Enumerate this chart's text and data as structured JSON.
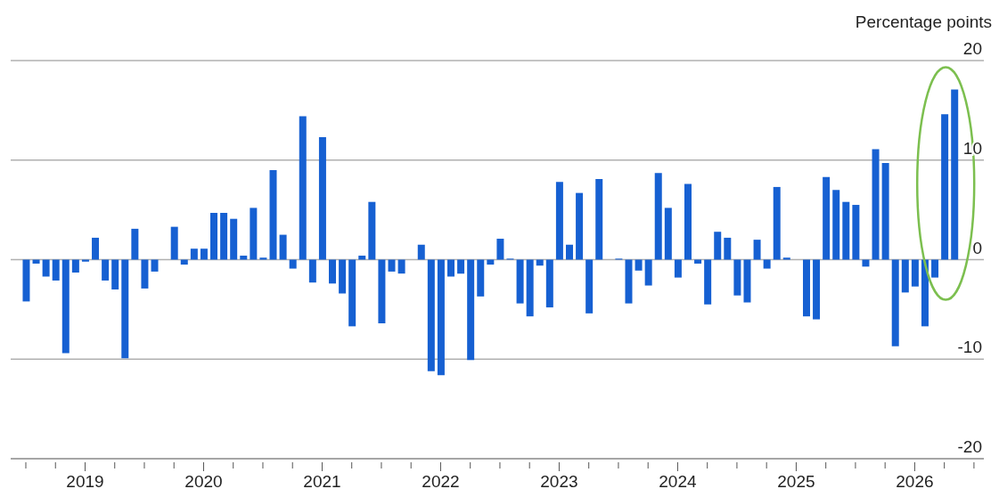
{
  "chart_data": {
    "type": "bar",
    "ylabel": "Percentage points",
    "x": [
      "2018-07",
      "2018-08",
      "2018-09",
      "2018-10",
      "2018-11",
      "2018-12",
      "2019-01",
      "2019-02",
      "2019-03",
      "2019-04",
      "2019-05",
      "2019-06",
      "2019-07",
      "2019-08",
      "2019-09",
      "2019-10",
      "2019-11",
      "2019-12",
      "2020-01",
      "2020-02",
      "2020-03",
      "2020-04",
      "2020-05",
      "2020-06",
      "2020-07",
      "2020-08",
      "2020-09",
      "2020-10",
      "2020-11",
      "2020-12",
      "2021-01",
      "2021-02",
      "2021-03",
      "2021-04",
      "2021-05",
      "2021-06",
      "2021-07",
      "2021-08",
      "2021-09",
      "2021-10",
      "2021-11",
      "2021-12",
      "2022-01",
      "2022-02",
      "2022-03",
      "2022-04",
      "2022-05",
      "2022-06",
      "2022-07",
      "2022-08",
      "2022-09",
      "2022-10",
      "2022-11",
      "2022-12",
      "2023-01",
      "2023-02",
      "2023-03",
      "2023-04",
      "2023-05",
      "2023-06",
      "2023-07",
      "2023-08",
      "2023-09",
      "2023-10",
      "2023-11",
      "2023-12",
      "2024-01",
      "2024-02",
      "2024-03",
      "2024-04",
      "2024-05",
      "2024-06",
      "2024-07",
      "2024-08",
      "2024-09",
      "2024-10",
      "2024-11",
      "2024-12",
      "2025-01",
      "2025-02",
      "2025-03",
      "2025-04",
      "2025-05",
      "2025-06",
      "2025-07",
      "2025-08",
      "2025-09",
      "2025-10",
      "2025-11",
      "2025-12",
      "2026-01",
      "2026-02",
      "2026-03",
      "2026-04",
      "2026-05"
    ],
    "values": [
      -4.2,
      -0.4,
      -1.7,
      -2.1,
      -9.4,
      -1.3,
      -0.2,
      2.2,
      -2.1,
      -3.0,
      -9.9,
      3.1,
      -2.9,
      -1.2,
      0,
      3.3,
      -0.5,
      1.1,
      1.1,
      4.7,
      4.7,
      4.1,
      0.4,
      5.2,
      0.2,
      9.0,
      2.5,
      -0.9,
      14.4,
      -2.3,
      12.3,
      -2.4,
      -3.4,
      -6.7,
      0.4,
      5.8,
      -6.4,
      -1.2,
      -1.4,
      0,
      1.5,
      -11.2,
      -11.6,
      -1.7,
      -1.4,
      -10.1,
      -3.7,
      -0.5,
      2.1,
      0.1,
      -4.4,
      -5.7,
      -0.6,
      -4.8,
      7.8,
      1.5,
      6.7,
      -5.4,
      8.1,
      0,
      0.1,
      -4.4,
      -1.1,
      -2.6,
      8.7,
      5.2,
      -1.8,
      7.6,
      -0.4,
      -4.5,
      2.8,
      2.2,
      -3.6,
      -4.3,
      2.0,
      -0.9,
      7.3,
      0.2,
      0,
      -5.7,
      -6.0,
      8.3,
      7.0,
      5.8,
      5.5,
      -0.7,
      11.1,
      9.7,
      -8.7,
      -3.3,
      -2.7,
      -6.7,
      -1.8,
      14.6,
      17.1
    ],
    "color": "#1660d2",
    "xlim": [
      "2018-05-15",
      "2026-08-01"
    ],
    "xticks": [
      {
        "value": "2018-07",
        "label": null
      },
      {
        "value": "2018-10",
        "label": null
      },
      {
        "value": "2019-01",
        "label": "2019"
      },
      {
        "value": "2019-04",
        "label": null
      },
      {
        "value": "2019-07",
        "label": null
      },
      {
        "value": "2019-10",
        "label": null
      },
      {
        "value": "2020-01",
        "label": "2020"
      },
      {
        "value": "2020-04",
        "label": null
      },
      {
        "value": "2020-07",
        "label": null
      },
      {
        "value": "2020-10",
        "label": null
      },
      {
        "value": "2021-01",
        "label": "2021"
      },
      {
        "value": "2021-04",
        "label": null
      },
      {
        "value": "2021-07",
        "label": null
      },
      {
        "value": "2021-10",
        "label": null
      },
      {
        "value": "2022-01",
        "label": "2022"
      },
      {
        "value": "2022-04",
        "label": null
      },
      {
        "value": "2022-07",
        "label": null
      },
      {
        "value": "2022-10",
        "label": null
      },
      {
        "value": "2023-01",
        "label": "2023"
      },
      {
        "value": "2023-04",
        "label": null
      },
      {
        "value": "2023-07",
        "label": null
      },
      {
        "value": "2023-10",
        "label": null
      },
      {
        "value": "2024-01",
        "label": "2024"
      },
      {
        "value": "2024-04",
        "label": null
      },
      {
        "value": "2024-07",
        "label": null
      },
      {
        "value": "2024-10",
        "label": null
      },
      {
        "value": "2025-01",
        "label": "2025"
      },
      {
        "value": "2025-04",
        "label": null
      },
      {
        "value": "2025-07",
        "label": null
      },
      {
        "value": "2025-10",
        "label": null
      },
      {
        "value": "2026-01",
        "label": "2026"
      },
      {
        "value": "2026-04",
        "label": null
      },
      {
        "value": "2026-07",
        "label": null
      }
    ],
    "ylim": [
      -20,
      20
    ],
    "yticks": [
      -20,
      -10,
      0,
      10,
      20
    ],
    "grid": "y"
  }
}
